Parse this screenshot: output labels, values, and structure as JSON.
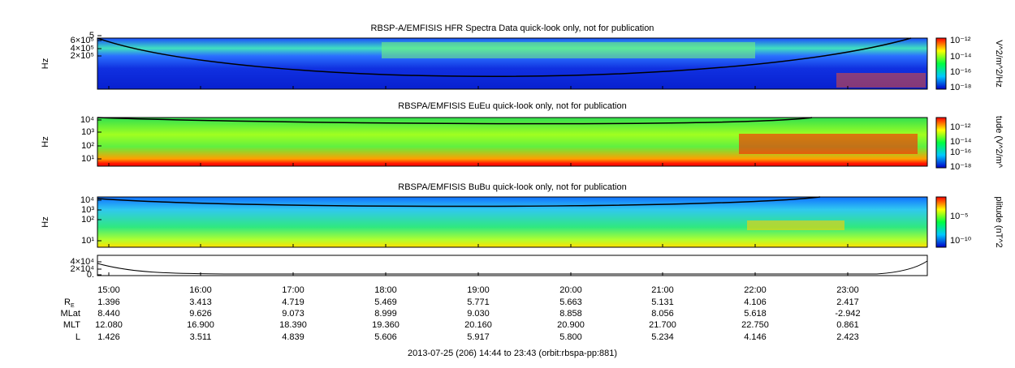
{
  "panels": [
    {
      "title": "RBSP-A/EMFISIS  HFR Spectra Data quick-look only, not for publication",
      "y_label": "Hz",
      "y_ticks": [
        "5",
        "6×10⁵",
        "4×10⁵",
        "2×10⁵"
      ],
      "colorbar_label": "V^2/m^2/Hz",
      "colorbar_ticks": [
        "10⁻¹²",
        "10⁻¹⁴",
        "10⁻¹⁶",
        "10⁻¹⁸"
      ]
    },
    {
      "title": "RBSPA/EMFISIS  EuEu quick-look only, not for publication",
      "y_label": "Hz",
      "y_ticks": [
        "10⁴",
        "10³",
        "10²",
        "10¹"
      ],
      "colorbar_label": "tude (V^2/m^",
      "colorbar_ticks": [
        "10⁻¹²",
        "10⁻¹⁴",
        "10⁻¹⁶",
        "10⁻¹⁸"
      ]
    },
    {
      "title": "RBSPA/EMFISIS  BuBu quick-look only, not for publication",
      "y_label": "Hz",
      "y_ticks": [
        "10⁴",
        "10³",
        "10²",
        "10¹"
      ],
      "colorbar_label": "plitude (nT^2",
      "colorbar_ticks": [
        "10⁻⁵",
        "10⁻¹⁰"
      ]
    },
    {
      "y_ticks": [
        "4×10⁴",
        "2×10⁴",
        "0."
      ]
    }
  ],
  "time_ticks": [
    "15:00",
    "16:00",
    "17:00",
    "18:00",
    "19:00",
    "20:00",
    "21:00",
    "22:00",
    "23:00"
  ],
  "ephemeris": [
    {
      "label": "R",
      "subscript": "E",
      "values": [
        "1.396",
        "3.413",
        "4.719",
        "5.469",
        "5.771",
        "5.663",
        "5.131",
        "4.106",
        "2.417"
      ]
    },
    {
      "label": "MLat",
      "values": [
        "8.440",
        "9.626",
        "9.073",
        "8.999",
        "9.030",
        "8.858",
        "8.056",
        "5.618",
        "-2.942"
      ]
    },
    {
      "label": "MLT",
      "values": [
        "12.080",
        "16.900",
        "18.390",
        "19.360",
        "20.160",
        "20.900",
        "21.700",
        "22.750",
        "0.861"
      ]
    },
    {
      "label": "L",
      "values": [
        "1.426",
        "3.511",
        "4.839",
        "5.606",
        "5.917",
        "5.800",
        "5.234",
        "4.146",
        "2.423"
      ]
    }
  ],
  "footer": "2013-07-25 (206) 14:44 to 23:43 (orbit:rbspa-pp:881)"
}
